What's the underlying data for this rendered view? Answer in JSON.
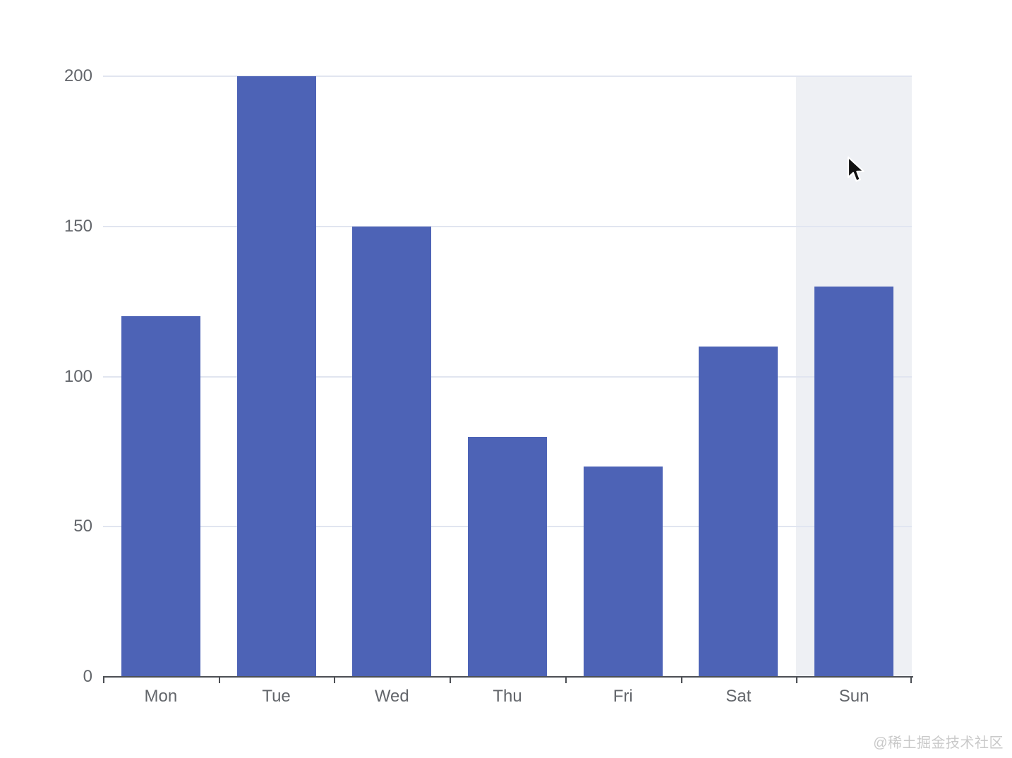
{
  "chart_data": {
    "type": "bar",
    "title": "",
    "categories": [
      "Mon",
      "Tue",
      "Wed",
      "Thu",
      "Fri",
      "Sat",
      "Sun"
    ],
    "values": [
      120,
      200,
      150,
      80,
      70,
      110,
      130
    ],
    "xlabel": "",
    "ylabel": "",
    "ylim": [
      0,
      200
    ],
    "yticks": [
      0,
      50,
      100,
      150,
      200
    ],
    "grid": "horizontal gridlines on",
    "legend": "none",
    "hovered_category": "Sun",
    "colors": {
      "bar": "#4d63b6",
      "gridline": "#e1e5f0",
      "axis_line": "#4c4f54",
      "tick_label": "#63666b",
      "hover_band": "rgba(188,195,210,0.25)",
      "background": "#ffffff"
    }
  },
  "cursor": {
    "shape": "arrow-pointer"
  },
  "watermark": {
    "text": "@稀土掘金技术社区",
    "color": "#c9c9c9"
  }
}
